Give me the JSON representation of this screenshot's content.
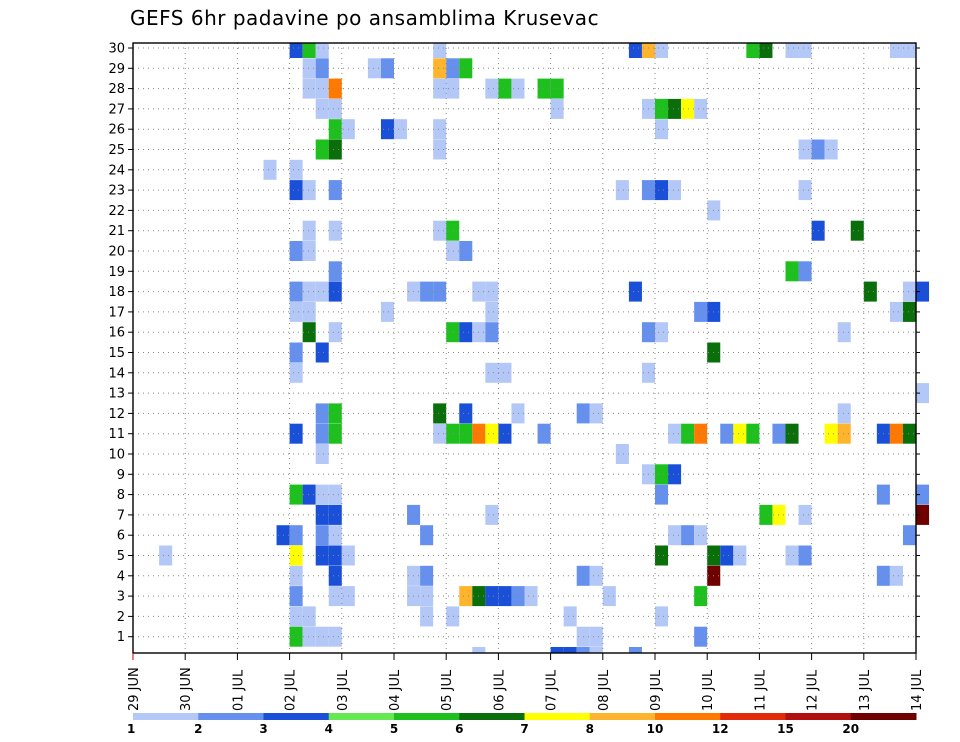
{
  "chart_data": {
    "type": "heatmap",
    "title": "GEFS 6hr padavine po ansamblima Krusevac",
    "y_categories": [
      "1",
      "2",
      "3",
      "4",
      "5",
      "6",
      "7",
      "8",
      "9",
      "10",
      "11",
      "12",
      "13",
      "14",
      "15",
      "16",
      "17",
      "18",
      "19",
      "20",
      "21",
      "22",
      "23",
      "24",
      "25",
      "26",
      "27",
      "28",
      "29",
      "30"
    ],
    "x_tick_labels": [
      "29 JUN",
      "30 JUN",
      "01 JUL",
      "02 JUL",
      "03 JUL",
      "04 JUL",
      "05 JUL",
      "06 JUL",
      "07 JUL",
      "08 JUL",
      "09 JUL",
      "10 JUL",
      "11 JUL",
      "12 JUL",
      "13 JUL",
      "14 JUL"
    ],
    "x_steps_per_day": 4,
    "legend": {
      "labels": [
        "1",
        "2",
        "3",
        "4",
        "5",
        "6",
        "7",
        "8",
        "10",
        "12",
        "15",
        "20"
      ],
      "colors": [
        "#b4c8f8",
        "#6690ee",
        "#1a4fd8",
        "#66e852",
        "#1ec01e",
        "#0a6e0a",
        "#ffff00",
        "#ffb42e",
        "#ff7800",
        "#e02a0a",
        "#b01010",
        "#6e0000"
      ],
      "position": "bottom"
    },
    "grid": true,
    "cells": [
      {
        "member": 30,
        "step": 12,
        "level": 3
      },
      {
        "member": 30,
        "step": 13,
        "level": 5
      },
      {
        "member": 30,
        "step": 14,
        "level": 1
      },
      {
        "member": 30,
        "step": 23,
        "level": 1
      },
      {
        "member": 30,
        "step": 38,
        "level": 3
      },
      {
        "member": 30,
        "step": 39,
        "level": 8
      },
      {
        "member": 30,
        "step": 40,
        "level": 1
      },
      {
        "member": 30,
        "step": 47,
        "level": 5
      },
      {
        "member": 30,
        "step": 48,
        "level": 6
      },
      {
        "member": 30,
        "step": 50,
        "level": 1
      },
      {
        "member": 30,
        "step": 51,
        "level": 1
      },
      {
        "member": 30,
        "step": 58,
        "level": 1
      },
      {
        "member": 30,
        "step": 59,
        "level": 1
      },
      {
        "member": 29,
        "step": 13,
        "level": 1
      },
      {
        "member": 29,
        "step": 14,
        "level": 2
      },
      {
        "member": 29,
        "step": 18,
        "level": 1
      },
      {
        "member": 29,
        "step": 19,
        "level": 2
      },
      {
        "member": 29,
        "step": 23,
        "level": 8
      },
      {
        "member": 29,
        "step": 24,
        "level": 2
      },
      {
        "member": 29,
        "step": 25,
        "level": 5
      },
      {
        "member": 28,
        "step": 13,
        "level": 1
      },
      {
        "member": 28,
        "step": 14,
        "level": 1
      },
      {
        "member": 28,
        "step": 15,
        "level": 9
      },
      {
        "member": 28,
        "step": 23,
        "level": 1
      },
      {
        "member": 28,
        "step": 24,
        "level": 1
      },
      {
        "member": 28,
        "step": 27,
        "level": 1
      },
      {
        "member": 28,
        "step": 28,
        "level": 5
      },
      {
        "member": 28,
        "step": 29,
        "level": 1
      },
      {
        "member": 28,
        "step": 31,
        "level": 5
      },
      {
        "member": 28,
        "step": 32,
        "level": 5
      },
      {
        "member": 27,
        "step": 14,
        "level": 1
      },
      {
        "member": 27,
        "step": 15,
        "level": 1
      },
      {
        "member": 27,
        "step": 32,
        "level": 1
      },
      {
        "member": 27,
        "step": 39,
        "level": 1
      },
      {
        "member": 27,
        "step": 40,
        "level": 5
      },
      {
        "member": 27,
        "step": 41,
        "level": 6
      },
      {
        "member": 27,
        "step": 42,
        "level": 7
      },
      {
        "member": 27,
        "step": 43,
        "level": 1
      },
      {
        "member": 26,
        "step": 15,
        "level": 5
      },
      {
        "member": 26,
        "step": 16,
        "level": 1
      },
      {
        "member": 26,
        "step": 19,
        "level": 3
      },
      {
        "member": 26,
        "step": 20,
        "level": 1
      },
      {
        "member": 26,
        "step": 23,
        "level": 1
      },
      {
        "member": 26,
        "step": 40,
        "level": 1
      },
      {
        "member": 25,
        "step": 14,
        "level": 5
      },
      {
        "member": 25,
        "step": 15,
        "level": 6
      },
      {
        "member": 25,
        "step": 23,
        "level": 1
      },
      {
        "member": 25,
        "step": 51,
        "level": 1
      },
      {
        "member": 25,
        "step": 52,
        "level": 2
      },
      {
        "member": 25,
        "step": 53,
        "level": 1
      },
      {
        "member": 24,
        "step": 10,
        "level": 1
      },
      {
        "member": 24,
        "step": 12,
        "level": 1
      },
      {
        "member": 23,
        "step": 12,
        "level": 3
      },
      {
        "member": 23,
        "step": 13,
        "level": 1
      },
      {
        "member": 23,
        "step": 15,
        "level": 2
      },
      {
        "member": 23,
        "step": 37,
        "level": 1
      },
      {
        "member": 23,
        "step": 39,
        "level": 2
      },
      {
        "member": 23,
        "step": 40,
        "level": 3
      },
      {
        "member": 23,
        "step": 41,
        "level": 1
      },
      {
        "member": 23,
        "step": 51,
        "level": 1
      },
      {
        "member": 22,
        "step": 44,
        "level": 1
      },
      {
        "member": 21,
        "step": 13,
        "level": 1
      },
      {
        "member": 21,
        "step": 15,
        "level": 1
      },
      {
        "member": 21,
        "step": 23,
        "level": 1
      },
      {
        "member": 21,
        "step": 24,
        "level": 5
      },
      {
        "member": 21,
        "step": 52,
        "level": 3
      },
      {
        "member": 21,
        "step": 55,
        "level": 6
      },
      {
        "member": 20,
        "step": 12,
        "level": 2
      },
      {
        "member": 20,
        "step": 13,
        "level": 1
      },
      {
        "member": 20,
        "step": 24,
        "level": 1
      },
      {
        "member": 20,
        "step": 25,
        "level": 2
      },
      {
        "member": 19,
        "step": 15,
        "level": 2
      },
      {
        "member": 19,
        "step": 50,
        "level": 5
      },
      {
        "member": 19,
        "step": 51,
        "level": 2
      },
      {
        "member": 18,
        "step": 12,
        "level": 2
      },
      {
        "member": 18,
        "step": 13,
        "level": 1
      },
      {
        "member": 18,
        "step": 14,
        "level": 1
      },
      {
        "member": 18,
        "step": 15,
        "level": 3
      },
      {
        "member": 18,
        "step": 21,
        "level": 1
      },
      {
        "member": 18,
        "step": 22,
        "level": 2
      },
      {
        "member": 18,
        "step": 23,
        "level": 2
      },
      {
        "member": 18,
        "step": 26,
        "level": 1
      },
      {
        "member": 18,
        "step": 27,
        "level": 1
      },
      {
        "member": 18,
        "step": 38,
        "level": 3
      },
      {
        "member": 18,
        "step": 56,
        "level": 6
      },
      {
        "member": 18,
        "step": 59,
        "level": 1
      },
      {
        "member": 18,
        "step": 60,
        "level": 3
      },
      {
        "member": 17,
        "step": 12,
        "level": 1
      },
      {
        "member": 17,
        "step": 13,
        "level": 1
      },
      {
        "member": 17,
        "step": 19,
        "level": 1
      },
      {
        "member": 17,
        "step": 27,
        "level": 1
      },
      {
        "member": 17,
        "step": 43,
        "level": 2
      },
      {
        "member": 17,
        "step": 44,
        "level": 3
      },
      {
        "member": 17,
        "step": 58,
        "level": 1
      },
      {
        "member": 17,
        "step": 59,
        "level": 6
      },
      {
        "member": 16,
        "step": 13,
        "level": 6
      },
      {
        "member": 16,
        "step": 15,
        "level": 1
      },
      {
        "member": 16,
        "step": 24,
        "level": 5
      },
      {
        "member": 16,
        "step": 25,
        "level": 3
      },
      {
        "member": 16,
        "step": 26,
        "level": 1
      },
      {
        "member": 16,
        "step": 27,
        "level": 2
      },
      {
        "member": 16,
        "step": 39,
        "level": 2
      },
      {
        "member": 16,
        "step": 40,
        "level": 1
      },
      {
        "member": 16,
        "step": 54,
        "level": 1
      },
      {
        "member": 15,
        "step": 12,
        "level": 2
      },
      {
        "member": 15,
        "step": 14,
        "level": 3
      },
      {
        "member": 15,
        "step": 44,
        "level": 6
      },
      {
        "member": 14,
        "step": 12,
        "level": 1
      },
      {
        "member": 14,
        "step": 27,
        "level": 1
      },
      {
        "member": 14,
        "step": 28,
        "level": 1
      },
      {
        "member": 14,
        "step": 39,
        "level": 1
      },
      {
        "member": 13,
        "step": 60,
        "level": 1
      },
      {
        "member": 12,
        "step": 14,
        "level": 2
      },
      {
        "member": 12,
        "step": 15,
        "level": 5
      },
      {
        "member": 12,
        "step": 23,
        "level": 6
      },
      {
        "member": 12,
        "step": 25,
        "level": 3
      },
      {
        "member": 12,
        "step": 29,
        "level": 1
      },
      {
        "member": 12,
        "step": 34,
        "level": 2
      },
      {
        "member": 12,
        "step": 35,
        "level": 1
      },
      {
        "member": 12,
        "step": 54,
        "level": 1
      },
      {
        "member": 11,
        "step": 12,
        "level": 3
      },
      {
        "member": 11,
        "step": 14,
        "level": 2
      },
      {
        "member": 11,
        "step": 15,
        "level": 5
      },
      {
        "member": 11,
        "step": 23,
        "level": 1
      },
      {
        "member": 11,
        "step": 24,
        "level": 5
      },
      {
        "member": 11,
        "step": 25,
        "level": 5
      },
      {
        "member": 11,
        "step": 26,
        "level": 9
      },
      {
        "member": 11,
        "step": 27,
        "level": 7
      },
      {
        "member": 11,
        "step": 28,
        "level": 3
      },
      {
        "member": 11,
        "step": 31,
        "level": 2
      },
      {
        "member": 11,
        "step": 41,
        "level": 1
      },
      {
        "member": 11,
        "step": 42,
        "level": 5
      },
      {
        "member": 11,
        "step": 43,
        "level": 9
      },
      {
        "member": 11,
        "step": 45,
        "level": 2
      },
      {
        "member": 11,
        "step": 46,
        "level": 7
      },
      {
        "member": 11,
        "step": 47,
        "level": 5
      },
      {
        "member": 11,
        "step": 49,
        "level": 2
      },
      {
        "member": 11,
        "step": 50,
        "level": 6
      },
      {
        "member": 11,
        "step": 53,
        "level": 7
      },
      {
        "member": 11,
        "step": 54,
        "level": 8
      },
      {
        "member": 11,
        "step": 57,
        "level": 3
      },
      {
        "member": 11,
        "step": 58,
        "level": 9
      },
      {
        "member": 11,
        "step": 59,
        "level": 6
      },
      {
        "member": 10,
        "step": 14,
        "level": 1
      },
      {
        "member": 10,
        "step": 37,
        "level": 1
      },
      {
        "member": 9,
        "step": 39,
        "level": 1
      },
      {
        "member": 9,
        "step": 40,
        "level": 5
      },
      {
        "member": 9,
        "step": 41,
        "level": 3
      },
      {
        "member": 8,
        "step": 12,
        "level": 5
      },
      {
        "member": 8,
        "step": 13,
        "level": 3
      },
      {
        "member": 8,
        "step": 14,
        "level": 1
      },
      {
        "member": 8,
        "step": 15,
        "level": 1
      },
      {
        "member": 8,
        "step": 40,
        "level": 2
      },
      {
        "member": 8,
        "step": 57,
        "level": 2
      },
      {
        "member": 8,
        "step": 60,
        "level": 2
      },
      {
        "member": 7,
        "step": 14,
        "level": 3
      },
      {
        "member": 7,
        "step": 15,
        "level": 3
      },
      {
        "member": 7,
        "step": 21,
        "level": 2
      },
      {
        "member": 7,
        "step": 27,
        "level": 1
      },
      {
        "member": 7,
        "step": 48,
        "level": 5
      },
      {
        "member": 7,
        "step": 49,
        "level": 7
      },
      {
        "member": 7,
        "step": 51,
        "level": 1
      },
      {
        "member": 7,
        "step": 60,
        "level": 12
      },
      {
        "member": 6,
        "step": 11,
        "level": 3
      },
      {
        "member": 6,
        "step": 12,
        "level": 2
      },
      {
        "member": 6,
        "step": 14,
        "level": 2
      },
      {
        "member": 6,
        "step": 15,
        "level": 1
      },
      {
        "member": 6,
        "step": 22,
        "level": 2
      },
      {
        "member": 6,
        "step": 41,
        "level": 1
      },
      {
        "member": 6,
        "step": 42,
        "level": 2
      },
      {
        "member": 6,
        "step": 43,
        "level": 1
      },
      {
        "member": 6,
        "step": 59,
        "level": 2
      },
      {
        "member": 5,
        "step": 2,
        "level": 1
      },
      {
        "member": 5,
        "step": 12,
        "level": 7
      },
      {
        "member": 5,
        "step": 14,
        "level": 3
      },
      {
        "member": 5,
        "step": 15,
        "level": 3
      },
      {
        "member": 5,
        "step": 16,
        "level": 1
      },
      {
        "member": 5,
        "step": 40,
        "level": 6
      },
      {
        "member": 5,
        "step": 44,
        "level": 6
      },
      {
        "member": 5,
        "step": 45,
        "level": 3
      },
      {
        "member": 5,
        "step": 46,
        "level": 1
      },
      {
        "member": 5,
        "step": 50,
        "level": 1
      },
      {
        "member": 5,
        "step": 51,
        "level": 2
      },
      {
        "member": 4,
        "step": 12,
        "level": 1
      },
      {
        "member": 4,
        "step": 15,
        "level": 3
      },
      {
        "member": 4,
        "step": 21,
        "level": 1
      },
      {
        "member": 4,
        "step": 22,
        "level": 2
      },
      {
        "member": 4,
        "step": 34,
        "level": 2
      },
      {
        "member": 4,
        "step": 35,
        "level": 1
      },
      {
        "member": 4,
        "step": 44,
        "level": 12
      },
      {
        "member": 4,
        "step": 57,
        "level": 2
      },
      {
        "member": 4,
        "step": 58,
        "level": 1
      },
      {
        "member": 3,
        "step": 12,
        "level": 2
      },
      {
        "member": 3,
        "step": 15,
        "level": 1
      },
      {
        "member": 3,
        "step": 16,
        "level": 1
      },
      {
        "member": 3,
        "step": 21,
        "level": 1
      },
      {
        "member": 3,
        "step": 22,
        "level": 1
      },
      {
        "member": 3,
        "step": 25,
        "level": 8
      },
      {
        "member": 3,
        "step": 26,
        "level": 6
      },
      {
        "member": 3,
        "step": 27,
        "level": 3
      },
      {
        "member": 3,
        "step": 28,
        "level": 3
      },
      {
        "member": 3,
        "step": 29,
        "level": 2
      },
      {
        "member": 3,
        "step": 30,
        "level": 1
      },
      {
        "member": 3,
        "step": 36,
        "level": 1
      },
      {
        "member": 3,
        "step": 43,
        "level": 5
      },
      {
        "member": 2,
        "step": 12,
        "level": 1
      },
      {
        "member": 2,
        "step": 13,
        "level": 1
      },
      {
        "member": 2,
        "step": 22,
        "level": 1
      },
      {
        "member": 2,
        "step": 24,
        "level": 1
      },
      {
        "member": 2,
        "step": 33,
        "level": 1
      },
      {
        "member": 2,
        "step": 40,
        "level": 1
      },
      {
        "member": 1,
        "step": 12,
        "level": 5
      },
      {
        "member": 1,
        "step": 13,
        "level": 1
      },
      {
        "member": 1,
        "step": 14,
        "level": 1
      },
      {
        "member": 1,
        "step": 15,
        "level": 1
      },
      {
        "member": 1,
        "step": 34,
        "level": 1
      },
      {
        "member": 1,
        "step": 35,
        "level": 1
      },
      {
        "member": 1,
        "step": 43,
        "level": 2
      },
      {
        "member": 0,
        "step": 26,
        "level": 1
      },
      {
        "member": 0,
        "step": 32,
        "level": 3
      },
      {
        "member": 0,
        "step": 33,
        "level": 3
      },
      {
        "member": 0,
        "step": 34,
        "level": 2
      },
      {
        "member": 0,
        "step": 35,
        "level": 1
      },
      {
        "member": 0,
        "step": 38,
        "level": 2
      }
    ]
  }
}
